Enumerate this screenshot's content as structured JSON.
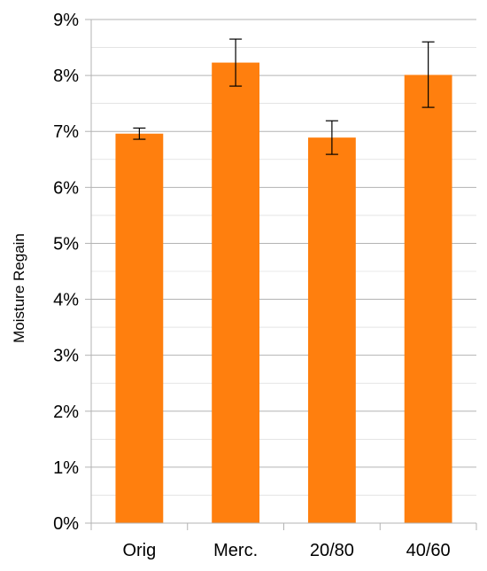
{
  "chart_data": {
    "type": "bar",
    "title": "",
    "xlabel": "",
    "ylabel": "Moisture Regain",
    "categories": [
      "Orig",
      "Merc.",
      "20/80",
      "40/60"
    ],
    "values": [
      6.96,
      8.23,
      6.89,
      8.01
    ],
    "error_low": [
      6.86,
      7.81,
      6.59,
      7.43
    ],
    "error_high": [
      7.06,
      8.65,
      7.19,
      8.6
    ],
    "ylim": [
      0,
      9
    ],
    "y_ticks": [
      {
        "value": 0,
        "label": "0%"
      },
      {
        "value": 1,
        "label": "1%"
      },
      {
        "value": 2,
        "label": "2%"
      },
      {
        "value": 3,
        "label": "3%"
      },
      {
        "value": 4,
        "label": "4%"
      },
      {
        "value": 5,
        "label": "5%"
      },
      {
        "value": 6,
        "label": "6%"
      },
      {
        "value": 7,
        "label": "7%"
      },
      {
        "value": 8,
        "label": "8%"
      },
      {
        "value": 9,
        "label": "9%"
      }
    ],
    "minor_grid_step": 0.5,
    "grid": true,
    "legend": "none",
    "colors": {
      "bar": "#ff7f0e",
      "grid": "#b3b3b3",
      "axis": "#b3b3b3",
      "error_bar": "#000000"
    }
  }
}
